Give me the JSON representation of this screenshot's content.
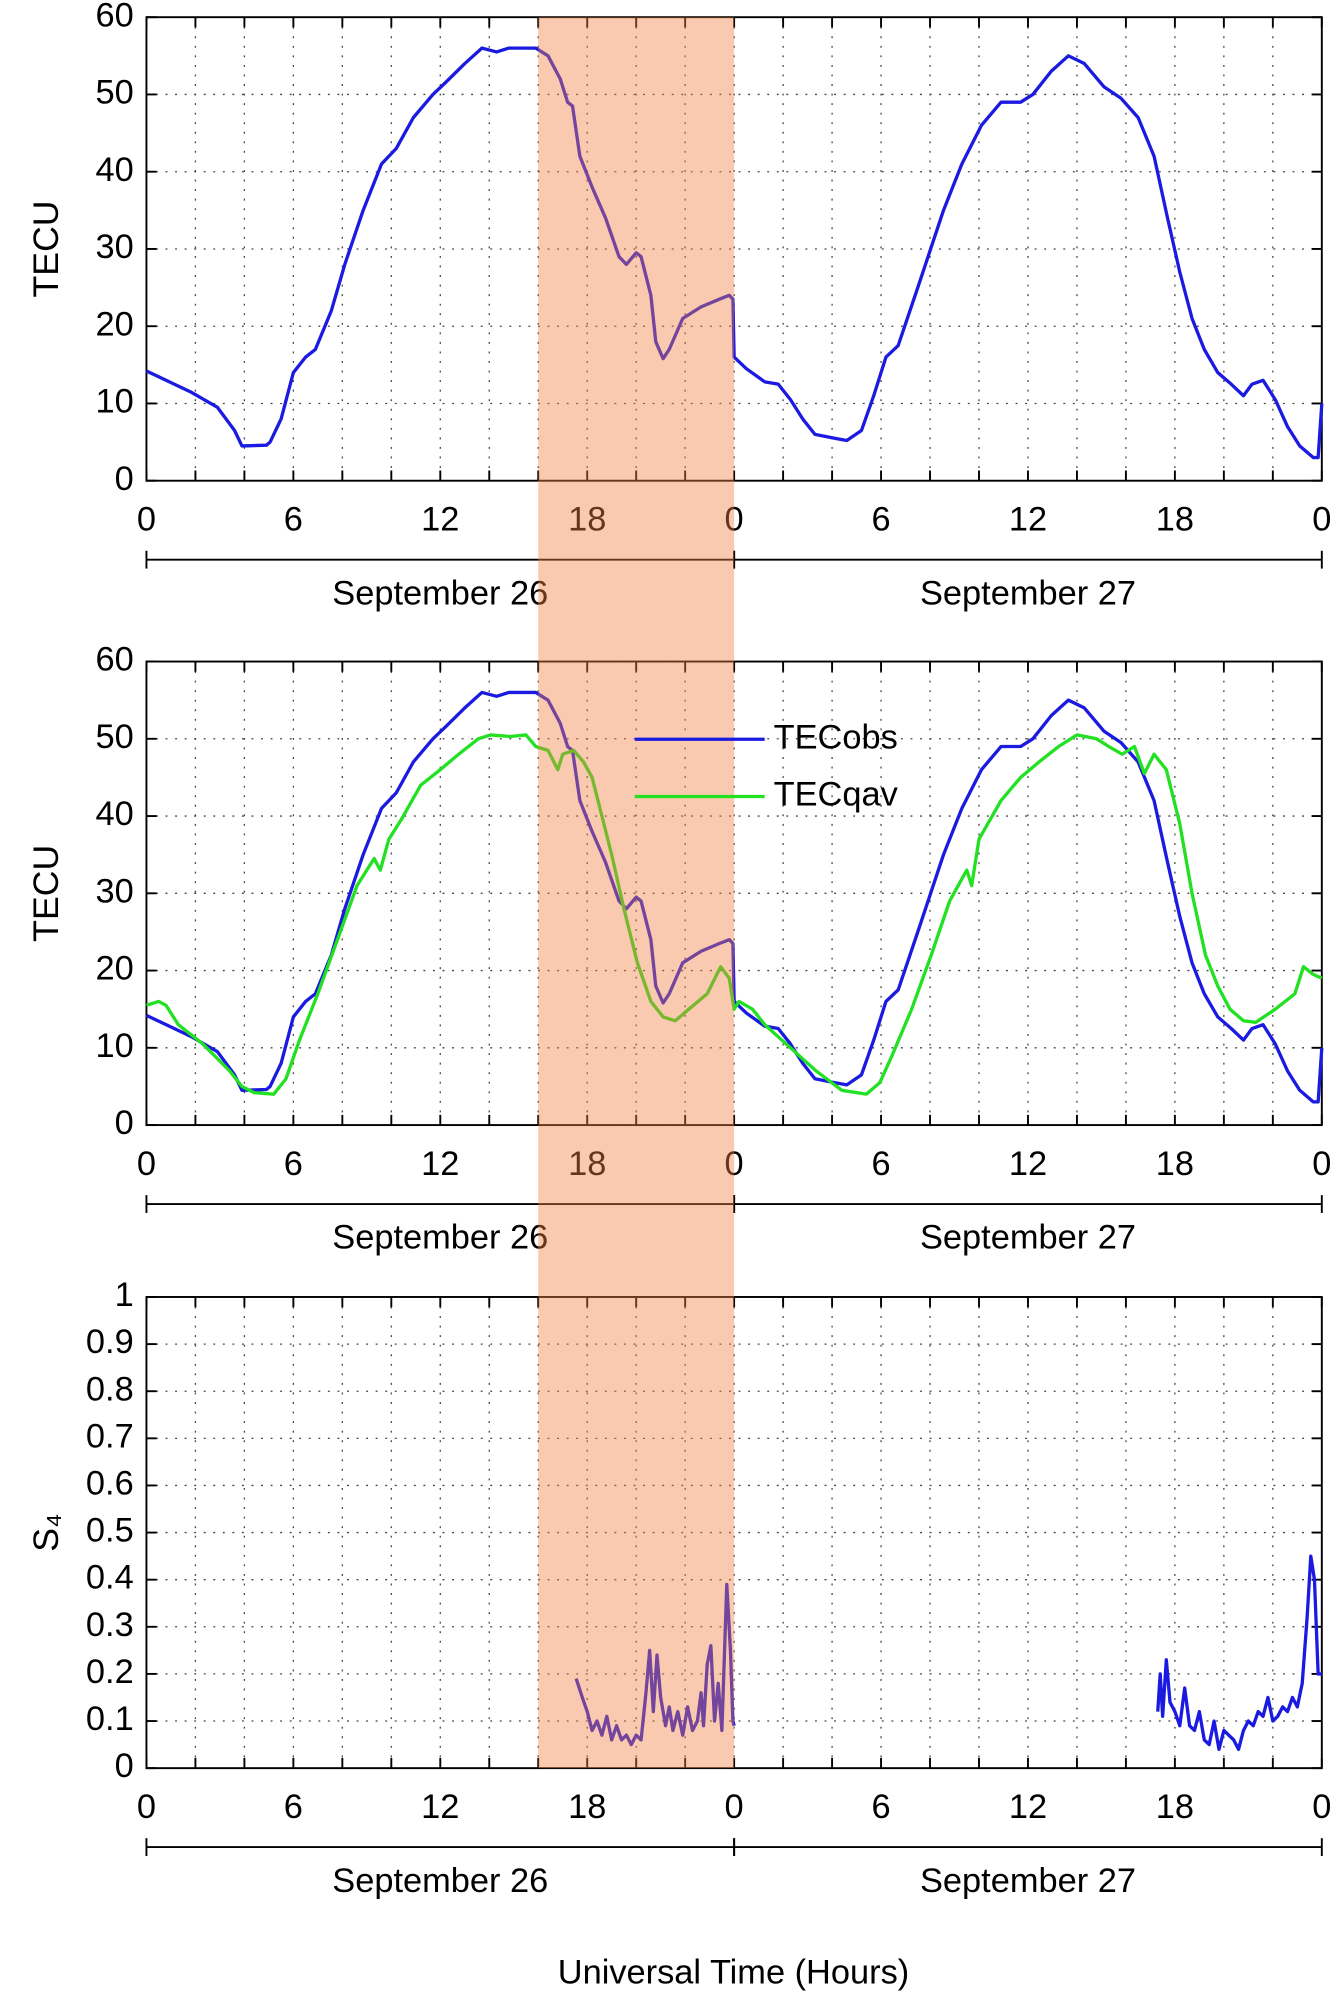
{
  "chart_data": [
    {
      "type": "line",
      "ylabel": "TECU",
      "ylim": [
        0,
        60
      ],
      "yticks": [
        0,
        10,
        20,
        30,
        40,
        50,
        60
      ],
      "xlim": [
        0,
        48
      ],
      "xticks": [
        0,
        6,
        12,
        18,
        {
          "value": 24,
          "label": "0"
        },
        {
          "value": 30,
          "label": "6"
        },
        {
          "value": 36,
          "label": "12"
        },
        {
          "value": 42,
          "label": "18"
        },
        {
          "value": 48,
          "label": "0"
        }
      ],
      "xminorticks": [
        2,
        4,
        8,
        10,
        14,
        16,
        20,
        22,
        26,
        28,
        32,
        34,
        38,
        40,
        44,
        46
      ],
      "grid": true,
      "periods": [
        {
          "label": "September 26",
          "range": [
            0,
            24
          ]
        },
        {
          "label": "September 27",
          "range": [
            24,
            48
          ]
        }
      ],
      "series": [
        {
          "color": "#1a1ae0",
          "x": [
            0,
            0.8,
            1.8,
            2.9,
            3.6,
            3.9,
            4.9,
            5.05,
            5.5,
            6,
            6.5,
            6.9,
            7.55,
            8.1,
            8.85,
            9.6,
            10.2,
            10.9,
            11.7,
            12.2,
            13,
            13.7,
            14.3,
            14.8,
            15.9,
            16.4,
            16.9,
            17.2,
            17.4,
            17.7,
            18.2,
            18.75,
            19.3,
            19.6,
            20,
            20.2,
            20.6,
            20.8,
            21.1,
            21.35,
            21.9,
            22.65,
            23.4,
            23.8,
            23.95,
            24,
            24.5,
            25.25,
            25.8,
            26.3,
            26.8,
            27.3,
            28.1,
            28.6,
            29.2,
            29.7,
            30.2,
            30.7,
            31.5,
            32.55,
            33.3,
            34.1,
            34.9,
            35.7,
            36.2,
            36.95,
            37.65,
            38.3,
            39.1,
            39.8,
            40.5,
            41.15,
            41.7,
            42.2,
            42.7,
            43.2,
            43.75,
            44.3,
            44.8,
            45.15,
            45.6,
            46.1,
            46.6,
            47.1,
            47.65,
            47.85,
            48
          ],
          "values": [
            14.2,
            13,
            11.5,
            9.5,
            6.5,
            4.5,
            4.6,
            5,
            8,
            14,
            16,
            17,
            22,
            28,
            35,
            41,
            43,
            47,
            50,
            51.5,
            54,
            56,
            55.5,
            56,
            56,
            55,
            52,
            49,
            48.5,
            42,
            38,
            34,
            29,
            28,
            29.5,
            29,
            24,
            18,
            15.8,
            17,
            21,
            22.5,
            23.5,
            24,
            23.5,
            16,
            14.5,
            12.8,
            12.5,
            10.5,
            8,
            6,
            5.5,
            5.2,
            6.5,
            11,
            16,
            17.5,
            25,
            35,
            41,
            46,
            49,
            49,
            50,
            53,
            55,
            54,
            51,
            49.5,
            47,
            42,
            34,
            27,
            21,
            17,
            14,
            12.5,
            11,
            12.5,
            13,
            10.5,
            7,
            4.5,
            3,
            3,
            10
          ]
        }
      ]
    },
    {
      "type": "line",
      "ylabel": "TECU",
      "ylim": [
        0,
        60
      ],
      "yticks": [
        0,
        10,
        20,
        30,
        40,
        50,
        60
      ],
      "xlim": [
        0,
        48
      ],
      "xticks": [
        0,
        6,
        12,
        18,
        {
          "value": 24,
          "label": "0"
        },
        {
          "value": 30,
          "label": "6"
        },
        {
          "value": 36,
          "label": "12"
        },
        {
          "value": 42,
          "label": "18"
        },
        {
          "value": 48,
          "label": "0"
        }
      ],
      "xminorticks": [
        2,
        4,
        8,
        10,
        14,
        16,
        20,
        22,
        26,
        28,
        32,
        34,
        38,
        40,
        44,
        46
      ],
      "grid": true,
      "legend": "upper center",
      "periods": [
        {
          "label": "September 26",
          "range": [
            0,
            24
          ]
        },
        {
          "label": "September 27",
          "range": [
            24,
            48
          ]
        }
      ],
      "series": [
        {
          "name": "TECobs",
          "color": "#1a1ae0",
          "x": [
            0,
            0.8,
            1.8,
            2.9,
            3.6,
            3.9,
            4.9,
            5.05,
            5.5,
            6,
            6.5,
            6.9,
            7.55,
            8.1,
            8.85,
            9.6,
            10.2,
            10.9,
            11.7,
            12.2,
            13,
            13.7,
            14.3,
            14.8,
            15.9,
            16.4,
            16.9,
            17.2,
            17.4,
            17.7,
            18.2,
            18.75,
            19.3,
            19.6,
            20,
            20.2,
            20.6,
            20.8,
            21.1,
            21.35,
            21.9,
            22.65,
            23.4,
            23.8,
            23.95,
            24,
            24.5,
            25.25,
            25.8,
            26.3,
            26.8,
            27.3,
            28.1,
            28.6,
            29.2,
            29.7,
            30.2,
            30.7,
            31.5,
            32.55,
            33.3,
            34.1,
            34.9,
            35.7,
            36.2,
            36.95,
            37.65,
            38.3,
            39.1,
            39.8,
            40.5,
            41.15,
            41.7,
            42.2,
            42.7,
            43.2,
            43.75,
            44.3,
            44.8,
            45.15,
            45.6,
            46.1,
            46.6,
            47.1,
            47.65,
            47.85,
            48
          ],
          "values": [
            14.2,
            13,
            11.5,
            9.5,
            6.5,
            4.5,
            4.6,
            5,
            8,
            14,
            16,
            17,
            22,
            28,
            35,
            41,
            43,
            47,
            50,
            51.5,
            54,
            56,
            55.5,
            56,
            56,
            55,
            52,
            49,
            48.5,
            42,
            38,
            34,
            29,
            28,
            29.5,
            29,
            24,
            18,
            15.8,
            17,
            21,
            22.5,
            23.5,
            24,
            23.5,
            16,
            14.5,
            12.8,
            12.5,
            10.5,
            8,
            6,
            5.5,
            5.2,
            6.5,
            11,
            16,
            17.5,
            25,
            35,
            41,
            46,
            49,
            49,
            50,
            53,
            55,
            54,
            51,
            49.5,
            47,
            42,
            34,
            27,
            21,
            17,
            14,
            12.5,
            11,
            12.5,
            13,
            10.5,
            7,
            4.5,
            3,
            3,
            10
          ]
        },
        {
          "name": "TECqav",
          "color": "#22e022",
          "x": [
            0,
            0.5,
            0.8,
            1.3,
            2.3,
            3.4,
            3.9,
            4.4,
            5.2,
            5.7,
            6.25,
            7,
            7.8,
            8.6,
            9.3,
            9.55,
            9.9,
            10.4,
            11.2,
            12,
            12.75,
            13.55,
            14.05,
            14.85,
            15.5,
            15.9,
            16.4,
            16.8,
            17,
            17.45,
            17.85,
            18.2,
            18.6,
            19,
            19.5,
            20.05,
            20.6,
            21.1,
            21.6,
            22.15,
            22.9,
            23.45,
            23.8,
            24,
            24.2,
            24.75,
            25.25,
            26.3,
            27.35,
            28.4,
            29.4,
            29.95,
            30.45,
            31.25,
            32.05,
            32.8,
            33.5,
            33.7,
            34,
            34.9,
            35.7,
            36.45,
            37.25,
            38,
            38.8,
            39.3,
            39.85,
            40.35,
            40.75,
            41.15,
            41.65,
            42.2,
            42.7,
            43.25,
            43.75,
            44.25,
            44.8,
            45.3,
            46.1,
            46.9,
            47.25,
            47.65,
            48
          ],
          "values": [
            15.5,
            16,
            15.5,
            13,
            10.5,
            7,
            5,
            4.2,
            4,
            6,
            11,
            17,
            24,
            31,
            34.5,
            33,
            37,
            39.5,
            44,
            46,
            48,
            50,
            50.5,
            50.3,
            50.5,
            49,
            48.5,
            46,
            48,
            48.5,
            47,
            45,
            40,
            35,
            28,
            21,
            16,
            14,
            13.5,
            15,
            17,
            20.5,
            19,
            15,
            16,
            15,
            13,
            10,
            7,
            4.5,
            4,
            5.5,
            9,
            15,
            22,
            29,
            33,
            31,
            37,
            42,
            45,
            47,
            49,
            50.5,
            50,
            49,
            48,
            49,
            45.5,
            48,
            46,
            39,
            30,
            22,
            18,
            15,
            13.5,
            13.3,
            15,
            17,
            20.5,
            19.5,
            19
          ]
        }
      ]
    },
    {
      "type": "line",
      "ylabel": "S₄",
      "ylim": [
        0,
        1
      ],
      "yticks": [
        0,
        0.1,
        0.2,
        0.3,
        0.4,
        0.5,
        0.6,
        0.7,
        0.8,
        0.9,
        1
      ],
      "xlim": [
        0,
        48
      ],
      "xticks": [
        0,
        6,
        12,
        18,
        {
          "value": 24,
          "label": "0"
        },
        {
          "value": 30,
          "label": "6"
        },
        {
          "value": 36,
          "label": "12"
        },
        {
          "value": 42,
          "label": "18"
        },
        {
          "value": 48,
          "label": "0"
        }
      ],
      "xminorticks": [
        2,
        4,
        8,
        10,
        14,
        16,
        20,
        22,
        26,
        28,
        32,
        34,
        38,
        40,
        44,
        46
      ],
      "grid": true,
      "periods": [
        {
          "label": "September 26",
          "range": [
            0,
            24
          ]
        },
        {
          "label": "September 27",
          "range": [
            24,
            48
          ]
        }
      ],
      "series": [
        {
          "color": "#1a1ae0",
          "x": [
            17.55,
            17.8,
            18,
            18.2,
            18.4,
            18.6,
            18.8,
            19,
            19.2,
            19.4,
            19.6,
            19.8,
            20,
            20.2,
            20.4,
            20.55,
            20.7,
            20.85,
            21,
            21.2,
            21.35,
            21.5,
            21.7,
            21.9,
            22.1,
            22.3,
            22.5,
            22.65,
            22.75,
            22.9,
            23.05,
            23.2,
            23.35,
            23.5,
            23.7,
            23.85,
            23.95,
            24,
            32,
            41.3,
            41.4,
            41.5,
            41.65,
            41.8,
            42,
            42.2,
            42.4,
            42.6,
            42.8,
            43,
            43.2,
            43.4,
            43.6,
            43.8,
            44,
            44.2,
            44.4,
            44.6,
            44.8,
            45,
            45.2,
            45.4,
            45.6,
            45.8,
            46,
            46.2,
            46.4,
            46.6,
            46.8,
            47,
            47.2,
            47.4,
            47.55,
            47.7,
            47.85,
            48
          ],
          "values": [
            0.19,
            0.15,
            0.12,
            0.08,
            0.1,
            0.07,
            0.11,
            0.06,
            0.09,
            0.06,
            0.07,
            0.05,
            0.07,
            0.06,
            0.16,
            0.25,
            0.12,
            0.24,
            0.15,
            0.09,
            0.13,
            0.08,
            0.12,
            0.07,
            0.13,
            0.08,
            0.1,
            0.16,
            0.09,
            0.22,
            0.26,
            0.1,
            0.18,
            0.08,
            0.39,
            0.25,
            0.1,
            0.09,
            null,
            0.12,
            0.2,
            0.11,
            0.23,
            0.14,
            0.12,
            0.09,
            0.17,
            0.09,
            0.08,
            0.12,
            0.06,
            0.05,
            0.1,
            0.04,
            0.08,
            0.07,
            0.06,
            0.04,
            0.08,
            0.1,
            0.09,
            0.12,
            0.11,
            0.15,
            0.1,
            0.11,
            0.13,
            0.12,
            0.15,
            0.13,
            0.18,
            0.32,
            0.45,
            0.4,
            0.2,
            0.2
          ]
        }
      ]
    }
  ],
  "shaded_range": {
    "x": [
      16,
      24
    ],
    "color": "#f08040",
    "opacity": 0.42
  },
  "xlabel": "Universal Time (Hours)"
}
